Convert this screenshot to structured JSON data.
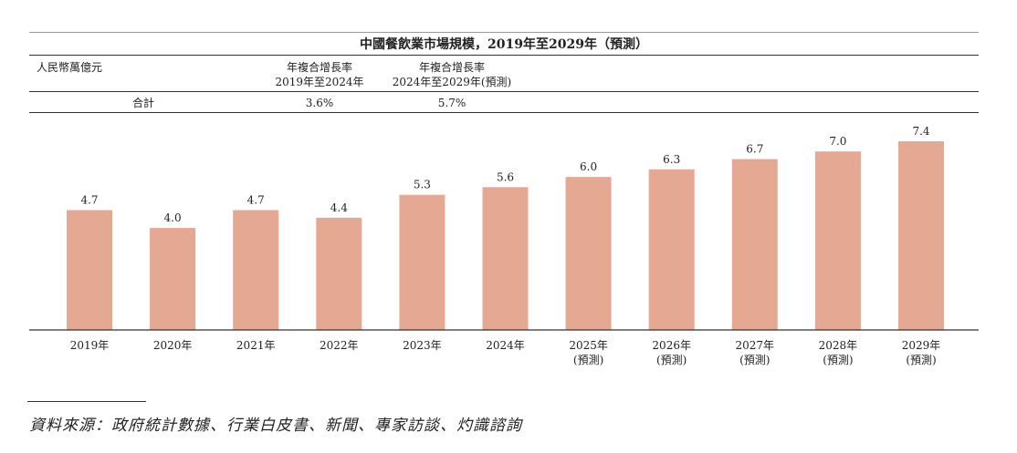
{
  "title": "中國餐飲業市場規模，2019年至2029年（預測）",
  "table": {
    "unit_label": "人民幣萬億元",
    "cagr1_line1": "年複合增長率",
    "cagr1_line2": "2019年至2024年",
    "cagr2_line1": "年複合增長率",
    "cagr2_line2": "2024年至2029年(預測)",
    "row_label": "合計",
    "cagr1_value": "3.6%",
    "cagr2_value": "5.7%"
  },
  "chart_data": {
    "type": "bar",
    "title": "中國餐飲業市場規模，2019年至2029年（預測）",
    "ylabel": "人民幣萬億元",
    "categories": [
      "2019年",
      "2020年",
      "2021年",
      "2022年",
      "2023年",
      "2024年",
      "2025年",
      "2026年",
      "2027年",
      "2028年",
      "2029年"
    ],
    "category_notes": [
      "",
      "",
      "",
      "",
      "",
      "",
      "(預測)",
      "(預測)",
      "(預測)",
      "(預測)",
      "(預測)"
    ],
    "values": [
      4.7,
      4.0,
      4.7,
      4.4,
      5.3,
      5.6,
      6.0,
      6.3,
      6.7,
      7.0,
      7.4
    ],
    "value_labels": [
      "4.7",
      "4.0",
      "4.7",
      "4.4",
      "5.3",
      "5.6",
      "6.0",
      "6.3",
      "6.7",
      "7.0",
      "7.4"
    ],
    "ylim": [
      0,
      7.4
    ],
    "bar_color": "#e5a892"
  },
  "source": "資料來源：政府統計數據、行業白皮書、新聞、專家訪談、灼識諮詢"
}
